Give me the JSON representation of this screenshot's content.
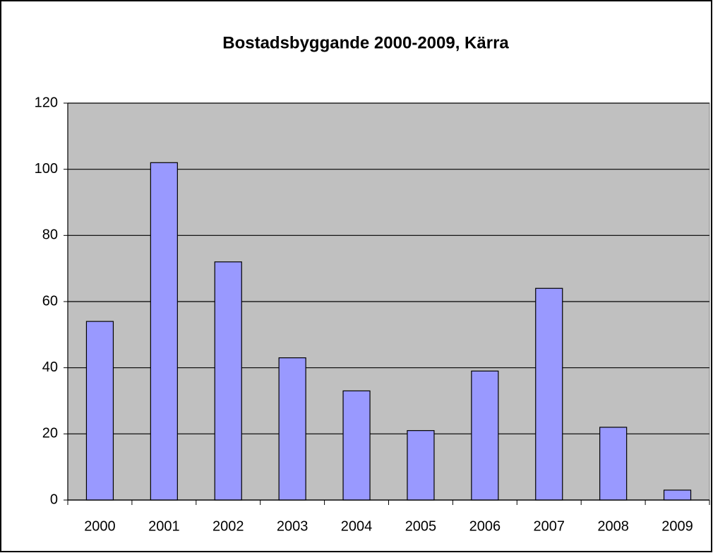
{
  "chart_data": {
    "type": "bar",
    "title": "Bostadsbyggande 2000-2009, Kärra",
    "categories": [
      "2000",
      "2001",
      "2002",
      "2003",
      "2004",
      "2005",
      "2006",
      "2007",
      "2008",
      "2009"
    ],
    "values": [
      54,
      102,
      72,
      43,
      33,
      21,
      39,
      64,
      22,
      3
    ],
    "color": "#9999ff",
    "ylim": [
      0,
      120
    ],
    "yticks": [
      0,
      20,
      40,
      60,
      80,
      100,
      120
    ],
    "grid": true
  }
}
